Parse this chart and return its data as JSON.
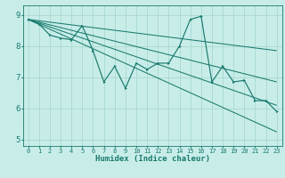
{
  "xlabel": "Humidex (Indice chaleur)",
  "bg_color": "#c8ede8",
  "line_color": "#1a7a6e",
  "grid_color": "#a8d8d0",
  "xlim": [
    -0.5,
    23.5
  ],
  "ylim": [
    4.8,
    9.3
  ],
  "xticks": [
    0,
    1,
    2,
    3,
    4,
    5,
    6,
    7,
    8,
    9,
    10,
    11,
    12,
    13,
    14,
    15,
    16,
    17,
    18,
    19,
    20,
    21,
    22,
    23
  ],
  "yticks": [
    5,
    6,
    7,
    8,
    9
  ],
  "series_main_x": [
    0,
    1,
    2,
    3,
    4,
    5,
    6,
    7,
    8,
    9,
    10,
    11,
    12,
    13,
    14,
    15,
    16,
    17,
    18,
    19,
    20,
    21,
    22,
    23
  ],
  "series_main_y": [
    8.85,
    8.7,
    8.35,
    8.25,
    8.2,
    8.65,
    7.85,
    6.85,
    7.35,
    6.65,
    7.45,
    7.25,
    7.45,
    7.45,
    8.0,
    8.85,
    8.95,
    6.85,
    7.35,
    6.85,
    6.9,
    6.25,
    6.25,
    5.9
  ],
  "regression_lines": [
    {
      "x": [
        0,
        23
      ],
      "y": [
        8.85,
        7.85
      ]
    },
    {
      "x": [
        0,
        23
      ],
      "y": [
        8.85,
        6.85
      ]
    },
    {
      "x": [
        0,
        23
      ],
      "y": [
        8.85,
        6.1
      ]
    },
    {
      "x": [
        0,
        23
      ],
      "y": [
        8.85,
        5.25
      ]
    }
  ]
}
